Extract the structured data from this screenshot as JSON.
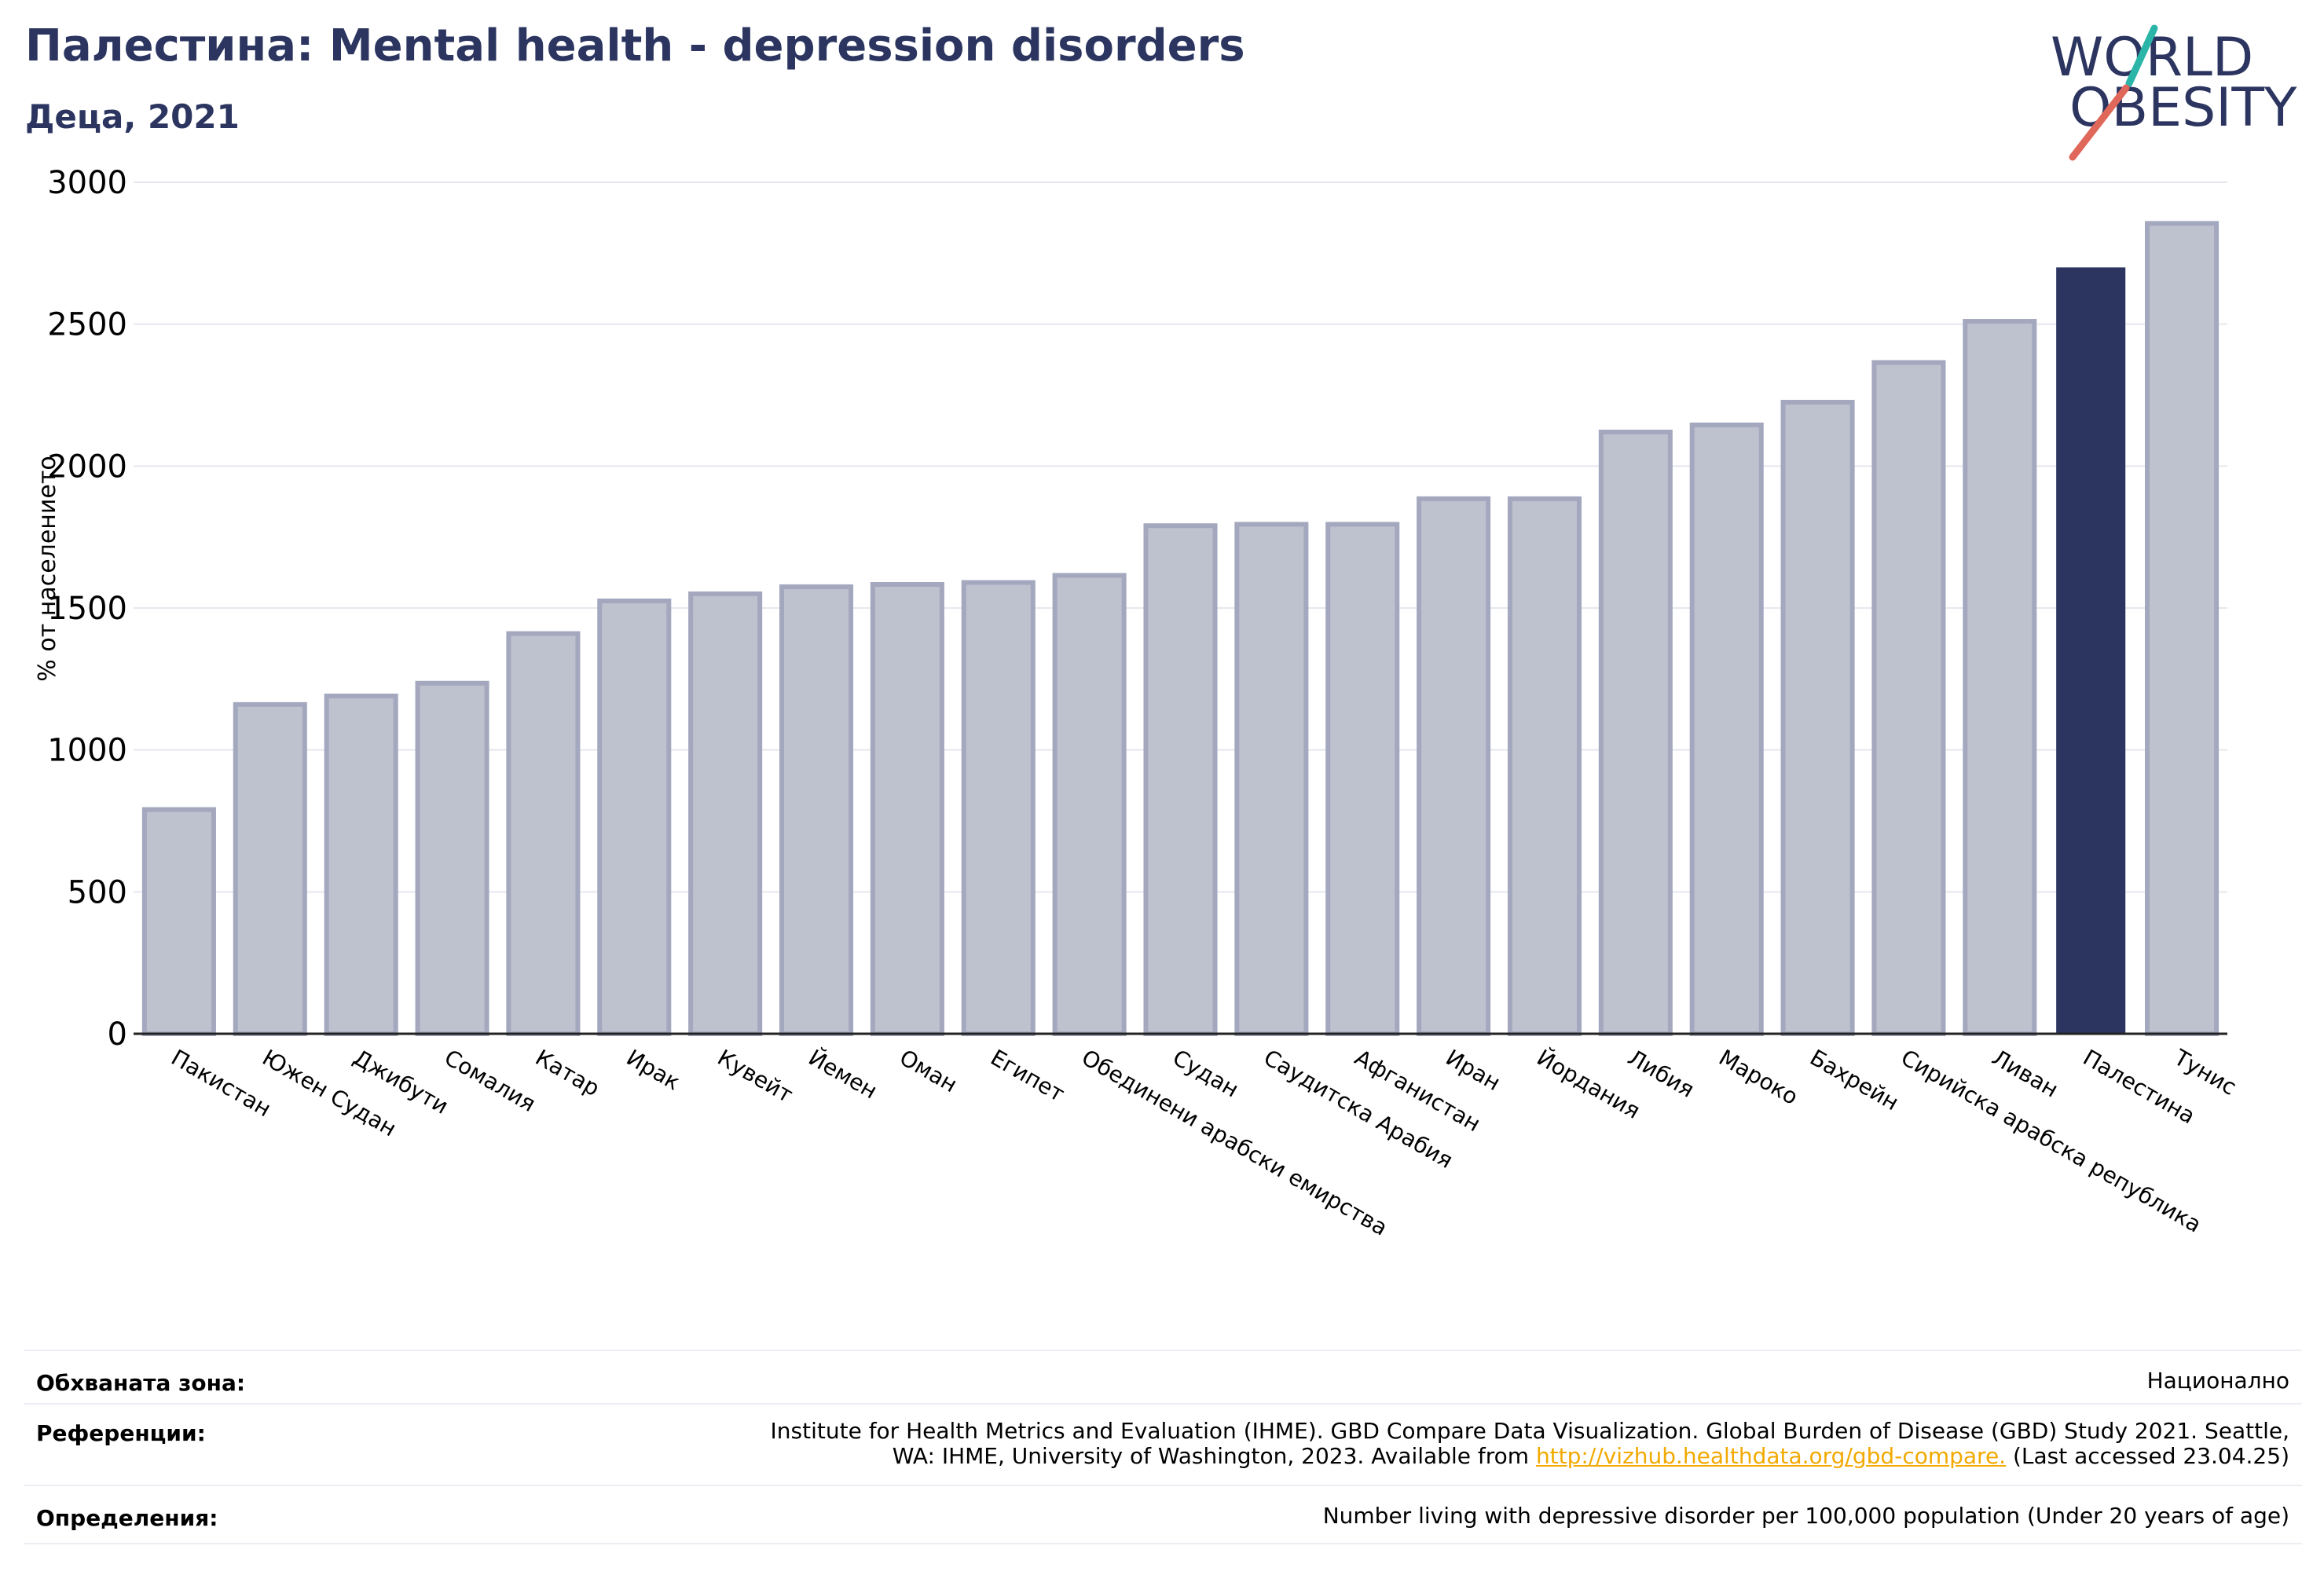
{
  "header": {
    "title": "Палестина: Mental health - depression disorders",
    "subtitle": "Деца, 2021"
  },
  "logo": {
    "line1": "WORLD",
    "line2": "OBESITY"
  },
  "chart_data": {
    "type": "bar",
    "ylabel": "% от населението",
    "xlabel": "",
    "ylim": [
      0,
      3000
    ],
    "yticks": [
      0,
      500,
      1000,
      1500,
      2000,
      2500,
      3000
    ],
    "grid": true,
    "categories": [
      "Пакистан",
      "Южен Судан",
      "Джибути",
      "Сомалия",
      "Катар",
      "Ирак",
      "Кувейт",
      "Йемен",
      "Оман",
      "Египет",
      "Обединени арабски емирства",
      "Судан",
      "Саудитска Арабия",
      "Афганистан",
      "Иран",
      "Йордания",
      "Либия",
      "Мароко",
      "Бахрейн",
      "Сирийска арабска република",
      "Ливан",
      "Палестина",
      "Тунис"
    ],
    "values": [
      790,
      1160,
      1190,
      1235,
      1410,
      1525,
      1550,
      1575,
      1583,
      1590,
      1615,
      1790,
      1795,
      1795,
      1885,
      1885,
      2120,
      2145,
      2225,
      2365,
      2510,
      2700,
      2855
    ],
    "highlight": "Палестина",
    "colors": {
      "highlight": "#2b3560",
      "bar": "#bec1ce",
      "bar_edge": "#a3a8be",
      "grid": "#e6e8ee"
    }
  },
  "meta": {
    "coverage_label": "Обхваната зона:",
    "coverage_value": "Национално",
    "references_label": "Референции:",
    "references_line1": "Institute for Health Metrics and Evaluation (IHME). GBD Compare Data Visualization. Global Burden of Disease (GBD) Study 2021. Seattle,",
    "references_line2_pre": "WA: IHME, University of Washington, 2023. Available from ",
    "references_link": "http://vizhub.healthdata.org/gbd-compare.",
    "references_line2_post": " (Last accessed 23.04.25)",
    "definitions_label": "Определения:",
    "definitions_value": "Number living with depressive disorder per 100,000 population (Under 20 years of age)"
  }
}
